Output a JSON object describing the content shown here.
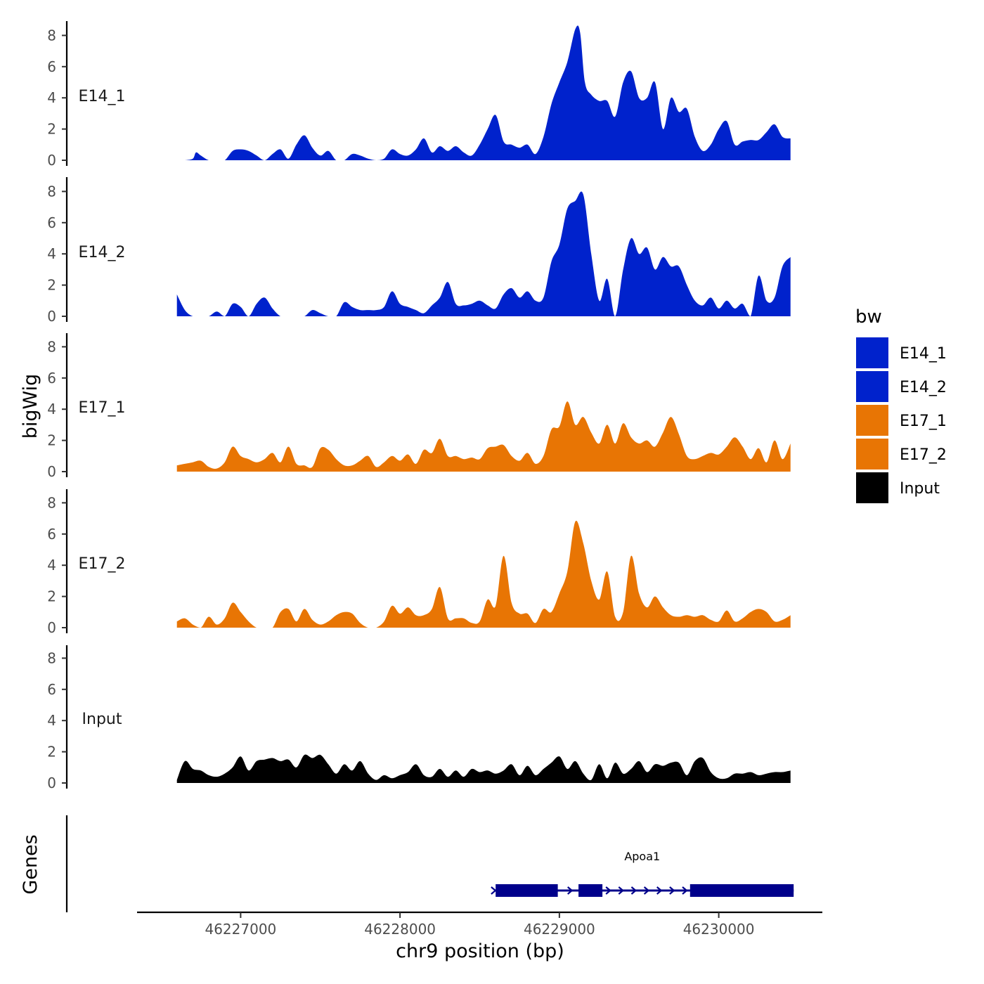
{
  "chart_data": {
    "type": "area",
    "xlabel": "chr9 position (bp)",
    "ylabel": "bigWig",
    "genes_label": "Genes",
    "xlim": [
      46226350,
      46230650
    ],
    "x_ticks": [
      46227000,
      46228000,
      46229000,
      46230000
    ],
    "x_tick_labels": [
      "46227000",
      "46228000",
      "46229000",
      "46230000"
    ],
    "ylim": [
      0,
      9
    ],
    "y_ticks": [
      0,
      2,
      4,
      6,
      8
    ],
    "y_tick_labels": [
      "0",
      "2",
      "4",
      "6",
      "8"
    ],
    "legend": {
      "title": "bw",
      "position": "right",
      "entries": [
        {
          "label": "E14_1",
          "color": "#0022CC"
        },
        {
          "label": "E14_2",
          "color": "#0022CC"
        },
        {
          "label": "E17_1",
          "color": "#E87504"
        },
        {
          "label": "E17_2",
          "color": "#E87504"
        },
        {
          "label": "Input",
          "color": "#000000"
        }
      ]
    },
    "series": [
      {
        "name": "E14_1",
        "color": "#0022CC",
        "x": [
          46226600,
          46226650,
          46226700,
          46226720,
          46226750,
          46226800,
          46226850,
          46226900,
          46226950,
          46227000,
          46227050,
          46227100,
          46227150,
          46227200,
          46227250,
          46227300,
          46227350,
          46227400,
          46227450,
          46227500,
          46227550,
          46227600,
          46227650,
          46227700,
          46227750,
          46227800,
          46227850,
          46227900,
          46227950,
          46228000,
          46228050,
          46228100,
          46228150,
          46228200,
          46228250,
          46228300,
          46228350,
          46228400,
          46228450,
          46228500,
          46228550,
          46228600,
          46228650,
          46228700,
          46228750,
          46228800,
          46228850,
          46228900,
          46228950,
          46229000,
          46229050,
          46229100,
          46229130,
          46229160,
          46229200,
          46229250,
          46229300,
          46229350,
          46229400,
          46229450,
          46229500,
          46229550,
          46229600,
          46229650,
          46229700,
          46229750,
          46229800,
          46229850,
          46229900,
          46229950,
          46230000,
          46230050,
          46230100,
          46230150,
          46230200,
          46230250,
          46230300,
          46230350,
          46230400,
          46230450
        ],
        "y": [
          0,
          0,
          0.1,
          0.5,
          0.3,
          0,
          0,
          0,
          0.6,
          0.7,
          0.6,
          0.3,
          0,
          0.4,
          0.7,
          0.1,
          1.0,
          1.6,
          0.8,
          0.3,
          0.6,
          0,
          0,
          0.4,
          0.3,
          0.1,
          0,
          0.1,
          0.7,
          0.4,
          0.3,
          0.7,
          1.4,
          0.5,
          0.9,
          0.6,
          0.9,
          0.5,
          0.3,
          1.0,
          2.0,
          2.9,
          1.2,
          1.0,
          0.8,
          1.0,
          0.4,
          1.5,
          3.6,
          5.0,
          6.3,
          8.4,
          8.2,
          5.0,
          4.2,
          3.8,
          3.8,
          2.8,
          5.0,
          5.7,
          4.0,
          4.0,
          5.0,
          2.0,
          4.0,
          3.1,
          3.3,
          1.5,
          0.6,
          1.0,
          2.0,
          2.5,
          1.0,
          1.2,
          1.3,
          1.3,
          1.8,
          2.3,
          1.5,
          1.4
        ]
      },
      {
        "name": "E14_2",
        "color": "#0022CC",
        "x": [
          46226600,
          46226650,
          46226700,
          46226750,
          46226800,
          46226850,
          46226900,
          46226950,
          46227000,
          46227050,
          46227100,
          46227150,
          46227200,
          46227250,
          46227300,
          46227350,
          46227400,
          46227450,
          46227500,
          46227550,
          46227600,
          46227650,
          46227700,
          46227750,
          46227800,
          46227850,
          46227900,
          46227950,
          46228000,
          46228050,
          46228100,
          46228150,
          46228200,
          46228250,
          46228300,
          46228350,
          46228400,
          46228450,
          46228500,
          46228550,
          46228600,
          46228650,
          46228700,
          46228750,
          46228800,
          46228850,
          46228900,
          46228950,
          46229000,
          46229050,
          46229100,
          46229150,
          46229200,
          46229250,
          46229300,
          46229350,
          46229400,
          46229450,
          46229500,
          46229550,
          46229600,
          46229650,
          46229700,
          46229750,
          46229800,
          46229850,
          46229900,
          46229950,
          46230000,
          46230050,
          46230100,
          46230150,
          46230200,
          46230250,
          46230300,
          46230350,
          46230400,
          46230450
        ],
        "y": [
          1.4,
          0.4,
          0,
          0,
          0,
          0.3,
          0,
          0.8,
          0.6,
          0,
          0.8,
          1.2,
          0.5,
          0,
          0,
          0,
          0,
          0.4,
          0.2,
          0,
          0,
          0.9,
          0.6,
          0.4,
          0.4,
          0.4,
          0.6,
          1.6,
          0.8,
          0.6,
          0.4,
          0.2,
          0.7,
          1.2,
          2.2,
          0.8,
          0.7,
          0.8,
          1.0,
          0.7,
          0.5,
          1.4,
          1.8,
          1.2,
          1.6,
          1.0,
          1.2,
          3.5,
          4.6,
          6.9,
          7.4,
          7.8,
          4.0,
          1.0,
          2.4,
          0,
          3.0,
          5.0,
          4.0,
          4.4,
          3.0,
          3.8,
          3.2,
          3.2,
          2.0,
          1.0,
          0.7,
          1.2,
          0.5,
          1.0,
          0.5,
          0.8,
          0,
          2.6,
          1.0,
          1.2,
          3.2,
          3.8
        ]
      },
      {
        "name": "E17_1",
        "color": "#E87504",
        "x": [
          46226600,
          46226650,
          46226700,
          46226750,
          46226800,
          46226850,
          46226900,
          46226950,
          46227000,
          46227050,
          46227100,
          46227150,
          46227200,
          46227250,
          46227300,
          46227350,
          46227400,
          46227450,
          46227500,
          46227550,
          46227600,
          46227650,
          46227700,
          46227750,
          46227800,
          46227850,
          46227900,
          46227950,
          46228000,
          46228050,
          46228100,
          46228150,
          46228200,
          46228250,
          46228300,
          46228350,
          46228400,
          46228450,
          46228500,
          46228550,
          46228600,
          46228650,
          46228700,
          46228750,
          46228800,
          46228850,
          46228900,
          46228950,
          46229000,
          46229050,
          46229100,
          46229150,
          46229200,
          46229250,
          46229300,
          46229350,
          46229400,
          46229450,
          46229500,
          46229550,
          46229600,
          46229650,
          46229700,
          46229750,
          46229800,
          46229850,
          46229900,
          46229950,
          46230000,
          46230050,
          46230100,
          46230150,
          46230200,
          46230250,
          46230300,
          46230350,
          46230400,
          46230450
        ],
        "y": [
          0.4,
          0.5,
          0.6,
          0.7,
          0.3,
          0.2,
          0.6,
          1.6,
          1.0,
          0.8,
          0.6,
          0.8,
          1.2,
          0.6,
          1.6,
          0.5,
          0.4,
          0.3,
          1.5,
          1.4,
          0.8,
          0.4,
          0.4,
          0.7,
          1.0,
          0.3,
          0.6,
          1.0,
          0.7,
          1.1,
          0.5,
          1.4,
          1.2,
          2.1,
          1.0,
          1.0,
          0.8,
          0.9,
          0.8,
          1.5,
          1.6,
          1.7,
          1.0,
          0.7,
          1.2,
          0.5,
          1.0,
          2.7,
          2.9,
          4.5,
          3.0,
          3.5,
          2.5,
          1.8,
          3.0,
          1.8,
          3.1,
          2.2,
          1.8,
          2.0,
          1.6,
          2.5,
          3.5,
          2.4,
          1.0,
          0.8,
          1.0,
          1.2,
          1.1,
          1.6,
          2.2,
          1.6,
          0.8,
          1.5,
          0.6,
          2.0,
          0.8,
          1.8
        ]
      },
      {
        "name": "E17_2",
        "color": "#E87504",
        "x": [
          46226600,
          46226650,
          46226700,
          46226750,
          46226800,
          46226850,
          46226900,
          46226950,
          46227000,
          46227050,
          46227100,
          46227150,
          46227200,
          46227250,
          46227300,
          46227350,
          46227400,
          46227450,
          46227500,
          46227550,
          46227600,
          46227650,
          46227700,
          46227750,
          46227800,
          46227850,
          46227900,
          46227950,
          46228000,
          46228050,
          46228100,
          46228150,
          46228200,
          46228250,
          46228300,
          46228350,
          46228400,
          46228450,
          46228500,
          46228550,
          46228600,
          46228650,
          46228700,
          46228750,
          46228800,
          46228850,
          46228900,
          46228950,
          46229000,
          46229050,
          46229100,
          46229150,
          46229200,
          46229250,
          46229300,
          46229350,
          46229400,
          46229450,
          46229500,
          46229550,
          46229600,
          46229650,
          46229700,
          46229750,
          46229800,
          46229850,
          46229900,
          46229950,
          46230000,
          46230050,
          46230100,
          46230150,
          46230200,
          46230250,
          46230300,
          46230350,
          46230400,
          46230450
        ],
        "y": [
          0.4,
          0.6,
          0.2,
          0,
          0.7,
          0.2,
          0.6,
          1.6,
          1.0,
          0.4,
          0,
          0,
          0,
          1.0,
          1.2,
          0.4,
          1.2,
          0.5,
          0.2,
          0.4,
          0.8,
          1.0,
          0.9,
          0.3,
          0,
          0,
          0.4,
          1.4,
          0.9,
          1.3,
          0.8,
          0.8,
          1.2,
          2.6,
          0.6,
          0.6,
          0.6,
          0.3,
          0.4,
          1.8,
          1.4,
          4.6,
          1.6,
          0.9,
          0.9,
          0.3,
          1.2,
          1.0,
          2.2,
          3.6,
          6.8,
          5.4,
          3.0,
          1.8,
          3.6,
          0.7,
          1.0,
          4.6,
          2.2,
          1.3,
          2.0,
          1.3,
          0.8,
          0.7,
          0.8,
          0.7,
          0.8,
          0.5,
          0.4,
          1.1,
          0.4,
          0.6,
          1.0,
          1.2,
          1.0,
          0.4,
          0.5,
          0.8
        ]
      },
      {
        "name": "Input",
        "color": "#000000",
        "x": [
          46226600,
          46226650,
          46226700,
          46226750,
          46226800,
          46226850,
          46226900,
          46226950,
          46227000,
          46227050,
          46227100,
          46227150,
          46227200,
          46227250,
          46227300,
          46227350,
          46227400,
          46227450,
          46227500,
          46227550,
          46227600,
          46227650,
          46227700,
          46227750,
          46227800,
          46227850,
          46227900,
          46227950,
          46228000,
          46228050,
          46228100,
          46228150,
          46228200,
          46228250,
          46228300,
          46228350,
          46228400,
          46228450,
          46228500,
          46228550,
          46228600,
          46228650,
          46228700,
          46228750,
          46228800,
          46228850,
          46228900,
          46228950,
          46229000,
          46229050,
          46229100,
          46229150,
          46229200,
          46229250,
          46229300,
          46229350,
          46229400,
          46229450,
          46229500,
          46229550,
          46229600,
          46229650,
          46229700,
          46229750,
          46229800,
          46229850,
          46229900,
          46229950,
          46230000,
          46230050,
          46230100,
          46230150,
          46230200,
          46230250,
          46230300,
          46230350,
          46230400,
          46230450
        ],
        "y": [
          0.2,
          1.4,
          0.9,
          0.8,
          0.5,
          0.4,
          0.6,
          1.0,
          1.7,
          0.8,
          1.4,
          1.5,
          1.6,
          1.4,
          1.5,
          1.0,
          1.8,
          1.6,
          1.8,
          1.2,
          0.6,
          1.2,
          0.8,
          1.4,
          0.6,
          0.2,
          0.5,
          0.3,
          0.5,
          0.7,
          1.2,
          0.5,
          0.4,
          0.9,
          0.4,
          0.8,
          0.4,
          0.9,
          0.7,
          0.8,
          0.6,
          0.8,
          1.2,
          0.5,
          1.1,
          0.5,
          0.9,
          1.3,
          1.7,
          0.9,
          1.4,
          0.6,
          0.2,
          1.2,
          0.3,
          1.3,
          0.6,
          0.9,
          1.4,
          0.7,
          1.2,
          1.1,
          1.3,
          1.3,
          0.5,
          1.4,
          1.6,
          0.7,
          0.3,
          0.3,
          0.6,
          0.6,
          0.7,
          0.5,
          0.6,
          0.7,
          0.7,
          0.8
        ]
      }
    ],
    "genes": {
      "name": "Apoa1",
      "color": "#00008B",
      "strand": "+",
      "start": 46228590,
      "end": 46230470,
      "exons": [
        [
          46228600,
          46228990
        ],
        [
          46229120,
          46229270
        ],
        [
          46229820,
          46230470
        ]
      ]
    }
  }
}
